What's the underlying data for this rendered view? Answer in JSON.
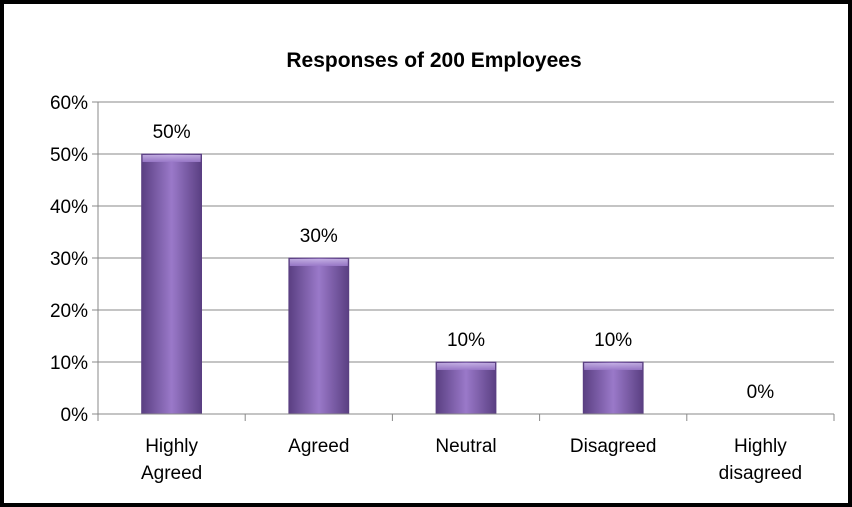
{
  "chart_data": {
    "type": "bar",
    "title": "Responses of 200 Employees",
    "categories": [
      [
        "Highly",
        "Agreed"
      ],
      [
        "Agreed"
      ],
      [
        "Neutral"
      ],
      [
        "Disagreed"
      ],
      [
        "Highly",
        "disagreed"
      ]
    ],
    "values": [
      50,
      30,
      10,
      10,
      0
    ],
    "data_labels": [
      "50%",
      "30%",
      "10%",
      "10%",
      "0%"
    ],
    "ylim": [
      0,
      60
    ],
    "yticks": [
      0,
      10,
      20,
      30,
      40,
      50,
      60
    ],
    "ytick_labels": [
      "0%",
      "10%",
      "20%",
      "30%",
      "40%",
      "50%",
      "60%"
    ],
    "grid": true,
    "legend": "none",
    "colors": {
      "bar_light": "#9a79c9",
      "bar_mid": "#7b5aa8",
      "bar_dark": "#5a3f82",
      "gridline": "#888888",
      "border": "#000000"
    }
  }
}
